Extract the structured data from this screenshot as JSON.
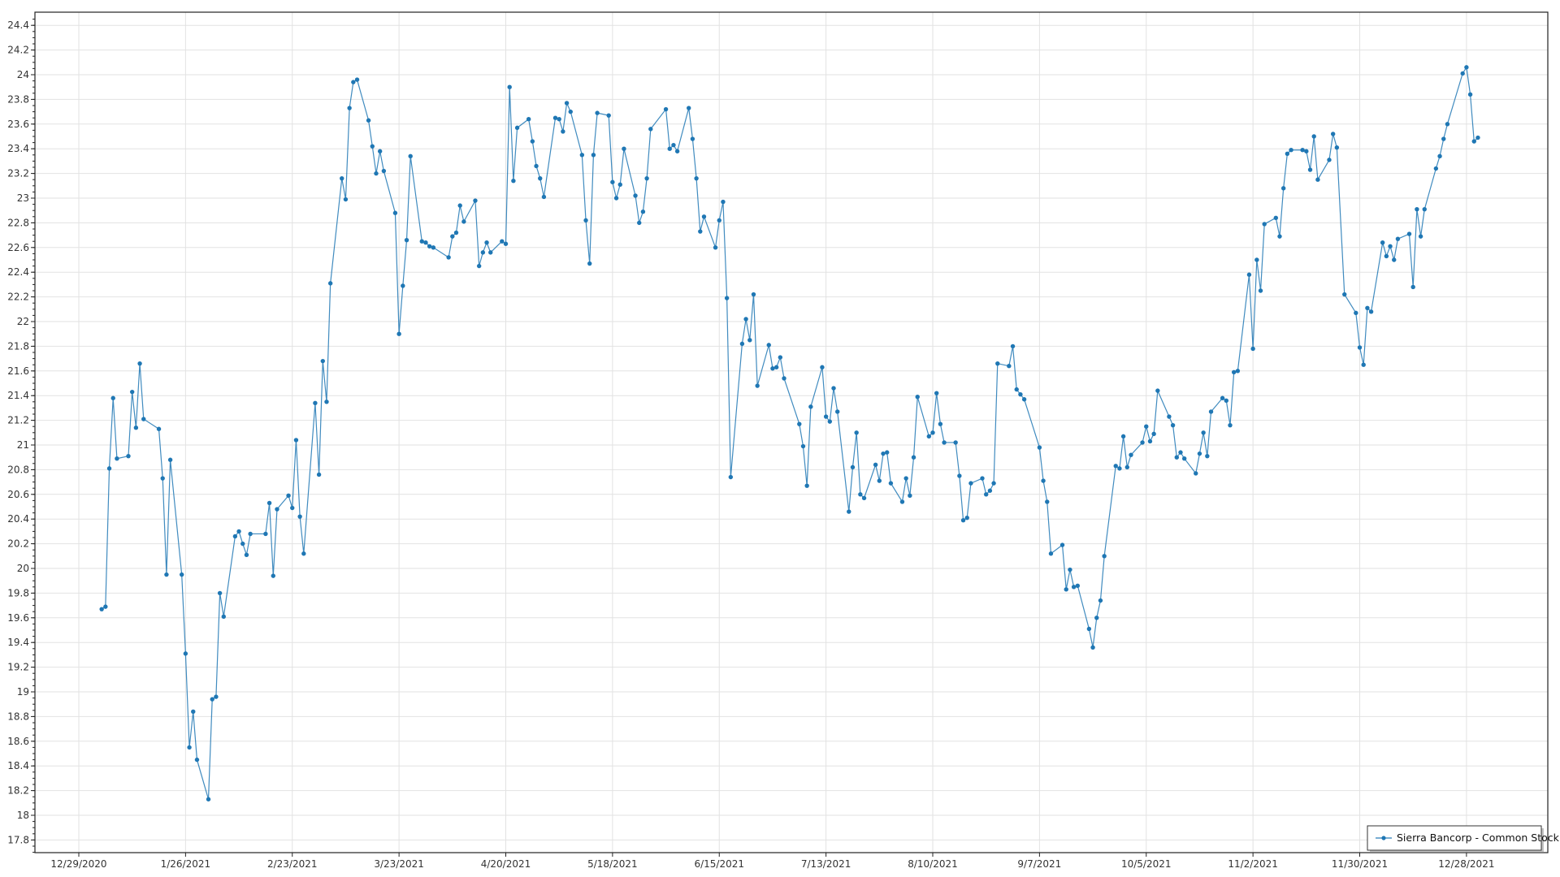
{
  "chart_data": {
    "type": "line",
    "title": "",
    "xlabel": "",
    "ylabel": "",
    "grid": true,
    "legend_position": "bottom-right",
    "ylim": [
      17.7,
      24.5
    ],
    "xlim": [
      "2020-12-17",
      "2022-01-18"
    ],
    "series_color": "#1f77b4",
    "x_tick_labels": [
      "12/29/2020",
      "1/26/2021",
      "2/23/2021",
      "3/23/2021",
      "4/20/2021",
      "5/18/2021",
      "6/15/2021",
      "7/13/2021",
      "8/10/2021",
      "9/7/2021",
      "10/5/2021",
      "11/2/2021",
      "11/30/2021",
      "12/28/2021"
    ],
    "y_tick_labels": [
      "17.8",
      "18",
      "18.2",
      "18.4",
      "18.6",
      "18.8",
      "19",
      "19.2",
      "19.4",
      "19.6",
      "19.8",
      "20",
      "20.2",
      "20.4",
      "20.6",
      "20.8",
      "21",
      "21.2",
      "21.4",
      "21.6",
      "21.8",
      "22",
      "22.2",
      "22.4",
      "22.6",
      "22.8",
      "23",
      "23.2",
      "23.4",
      "23.6",
      "23.8",
      "24",
      "24.2",
      "24.4"
    ],
    "series": [
      {
        "name": "Sierra Bancorp - Common Stock",
        "points": [
          [
            "2021-01-04",
            19.67
          ],
          [
            "2021-01-05",
            19.69
          ],
          [
            "2021-01-06",
            20.81
          ],
          [
            "2021-01-07",
            21.38
          ],
          [
            "2021-01-08",
            20.89
          ],
          [
            "2021-01-11",
            20.91
          ],
          [
            "2021-01-12",
            21.43
          ],
          [
            "2021-01-13",
            21.14
          ],
          [
            "2021-01-14",
            21.66
          ],
          [
            "2021-01-15",
            21.21
          ],
          [
            "2021-01-19",
            21.13
          ],
          [
            "2021-01-20",
            20.73
          ],
          [
            "2021-01-21",
            19.95
          ],
          [
            "2021-01-22",
            20.88
          ],
          [
            "2021-01-25",
            19.95
          ],
          [
            "2021-01-26",
            19.31
          ],
          [
            "2021-01-27",
            18.55
          ],
          [
            "2021-01-28",
            18.84
          ],
          [
            "2021-01-29",
            18.45
          ],
          [
            "2021-02-01",
            18.13
          ],
          [
            "2021-02-02",
            18.94
          ],
          [
            "2021-02-03",
            18.96
          ],
          [
            "2021-02-04",
            19.8
          ],
          [
            "2021-02-05",
            19.61
          ],
          [
            "2021-02-08",
            20.26
          ],
          [
            "2021-02-09",
            20.3
          ],
          [
            "2021-02-10",
            20.2
          ],
          [
            "2021-02-11",
            20.11
          ],
          [
            "2021-02-12",
            20.28
          ],
          [
            "2021-02-16",
            20.28
          ],
          [
            "2021-02-17",
            20.53
          ],
          [
            "2021-02-18",
            19.94
          ],
          [
            "2021-02-19",
            20.48
          ],
          [
            "2021-02-22",
            20.59
          ],
          [
            "2021-02-23",
            20.49
          ],
          [
            "2021-02-24",
            21.04
          ],
          [
            "2021-02-25",
            20.42
          ],
          [
            "2021-02-26",
            20.12
          ],
          [
            "2021-03-01",
            21.34
          ],
          [
            "2021-03-02",
            20.76
          ],
          [
            "2021-03-03",
            21.68
          ],
          [
            "2021-03-04",
            21.35
          ],
          [
            "2021-03-05",
            22.31
          ],
          [
            "2021-03-08",
            23.16
          ],
          [
            "2021-03-09",
            22.99
          ],
          [
            "2021-03-10",
            23.73
          ],
          [
            "2021-03-11",
            23.94
          ],
          [
            "2021-03-12",
            23.96
          ],
          [
            "2021-03-15",
            23.63
          ],
          [
            "2021-03-16",
            23.42
          ],
          [
            "2021-03-17",
            23.2
          ],
          [
            "2021-03-18",
            23.38
          ],
          [
            "2021-03-19",
            23.22
          ],
          [
            "2021-03-22",
            22.88
          ],
          [
            "2021-03-23",
            21.9
          ],
          [
            "2021-03-24",
            22.29
          ],
          [
            "2021-03-25",
            22.66
          ],
          [
            "2021-03-26",
            23.34
          ],
          [
            "2021-03-29",
            22.65
          ],
          [
            "2021-03-30",
            22.64
          ],
          [
            "2021-03-31",
            22.61
          ],
          [
            "2021-04-01",
            22.6
          ],
          [
            "2021-04-05",
            22.52
          ],
          [
            "2021-04-06",
            22.69
          ],
          [
            "2021-04-07",
            22.72
          ],
          [
            "2021-04-08",
            22.94
          ],
          [
            "2021-04-09",
            22.81
          ],
          [
            "2021-04-12",
            22.98
          ],
          [
            "2021-04-13",
            22.45
          ],
          [
            "2021-04-14",
            22.56
          ],
          [
            "2021-04-15",
            22.64
          ],
          [
            "2021-04-16",
            22.56
          ],
          [
            "2021-04-19",
            22.65
          ],
          [
            "2021-04-20",
            22.63
          ],
          [
            "2021-04-21",
            23.9
          ],
          [
            "2021-04-22",
            23.14
          ],
          [
            "2021-04-23",
            23.57
          ],
          [
            "2021-04-26",
            23.64
          ],
          [
            "2021-04-27",
            23.46
          ],
          [
            "2021-04-28",
            23.26
          ],
          [
            "2021-04-29",
            23.16
          ],
          [
            "2021-04-30",
            23.01
          ],
          [
            "2021-05-03",
            23.65
          ],
          [
            "2021-05-04",
            23.64
          ],
          [
            "2021-05-05",
            23.54
          ],
          [
            "2021-05-06",
            23.77
          ],
          [
            "2021-05-07",
            23.7
          ],
          [
            "2021-05-10",
            23.35
          ],
          [
            "2021-05-11",
            22.82
          ],
          [
            "2021-05-12",
            22.47
          ],
          [
            "2021-05-13",
            23.35
          ],
          [
            "2021-05-14",
            23.69
          ],
          [
            "2021-05-17",
            23.67
          ],
          [
            "2021-05-18",
            23.13
          ],
          [
            "2021-05-19",
            23.0
          ],
          [
            "2021-05-20",
            23.11
          ],
          [
            "2021-05-21",
            23.4
          ],
          [
            "2021-05-24",
            23.02
          ],
          [
            "2021-05-25",
            22.8
          ],
          [
            "2021-05-26",
            22.89
          ],
          [
            "2021-05-27",
            23.16
          ],
          [
            "2021-05-28",
            23.56
          ],
          [
            "2021-06-01",
            23.72
          ],
          [
            "2021-06-02",
            23.4
          ],
          [
            "2021-06-03",
            23.43
          ],
          [
            "2021-06-04",
            23.38
          ],
          [
            "2021-06-07",
            23.73
          ],
          [
            "2021-06-08",
            23.48
          ],
          [
            "2021-06-09",
            23.16
          ],
          [
            "2021-06-10",
            22.73
          ],
          [
            "2021-06-11",
            22.85
          ],
          [
            "2021-06-14",
            22.6
          ],
          [
            "2021-06-15",
            22.82
          ],
          [
            "2021-06-16",
            22.97
          ],
          [
            "2021-06-17",
            22.19
          ],
          [
            "2021-06-18",
            20.74
          ],
          [
            "2021-06-21",
            21.82
          ],
          [
            "2021-06-22",
            22.02
          ],
          [
            "2021-06-23",
            21.85
          ],
          [
            "2021-06-24",
            22.22
          ],
          [
            "2021-06-25",
            21.48
          ],
          [
            "2021-06-28",
            21.81
          ],
          [
            "2021-06-29",
            21.62
          ],
          [
            "2021-06-30",
            21.63
          ],
          [
            "2021-07-01",
            21.71
          ],
          [
            "2021-07-02",
            21.54
          ],
          [
            "2021-07-06",
            21.17
          ],
          [
            "2021-07-07",
            20.99
          ],
          [
            "2021-07-08",
            20.67
          ],
          [
            "2021-07-09",
            21.31
          ],
          [
            "2021-07-12",
            21.63
          ],
          [
            "2021-07-13",
            21.23
          ],
          [
            "2021-07-14",
            21.19
          ],
          [
            "2021-07-15",
            21.46
          ],
          [
            "2021-07-16",
            21.27
          ],
          [
            "2021-07-19",
            20.46
          ],
          [
            "2021-07-20",
            20.82
          ],
          [
            "2021-07-21",
            21.1
          ],
          [
            "2021-07-22",
            20.6
          ],
          [
            "2021-07-23",
            20.57
          ],
          [
            "2021-07-26",
            20.84
          ],
          [
            "2021-07-27",
            20.71
          ],
          [
            "2021-07-28",
            20.93
          ],
          [
            "2021-07-29",
            20.94
          ],
          [
            "2021-07-30",
            20.69
          ],
          [
            "2021-08-02",
            20.54
          ],
          [
            "2021-08-03",
            20.73
          ],
          [
            "2021-08-04",
            20.59
          ],
          [
            "2021-08-05",
            20.9
          ],
          [
            "2021-08-06",
            21.39
          ],
          [
            "2021-08-09",
            21.07
          ],
          [
            "2021-08-10",
            21.1
          ],
          [
            "2021-08-11",
            21.42
          ],
          [
            "2021-08-12",
            21.17
          ],
          [
            "2021-08-13",
            21.02
          ],
          [
            "2021-08-16",
            21.02
          ],
          [
            "2021-08-17",
            20.75
          ],
          [
            "2021-08-18",
            20.39
          ],
          [
            "2021-08-19",
            20.41
          ],
          [
            "2021-08-20",
            20.69
          ],
          [
            "2021-08-23",
            20.73
          ],
          [
            "2021-08-24",
            20.6
          ],
          [
            "2021-08-25",
            20.63
          ],
          [
            "2021-08-26",
            20.69
          ],
          [
            "2021-08-27",
            21.66
          ],
          [
            "2021-08-30",
            21.64
          ],
          [
            "2021-08-31",
            21.8
          ],
          [
            "2021-09-01",
            21.45
          ],
          [
            "2021-09-02",
            21.41
          ],
          [
            "2021-09-03",
            21.37
          ],
          [
            "2021-09-07",
            20.98
          ],
          [
            "2021-09-08",
            20.71
          ],
          [
            "2021-09-09",
            20.54
          ],
          [
            "2021-09-10",
            20.12
          ],
          [
            "2021-09-13",
            20.19
          ],
          [
            "2021-09-14",
            19.83
          ],
          [
            "2021-09-15",
            19.99
          ],
          [
            "2021-09-16",
            19.85
          ],
          [
            "2021-09-17",
            19.86
          ],
          [
            "2021-09-20",
            19.51
          ],
          [
            "2021-09-21",
            19.36
          ],
          [
            "2021-09-22",
            19.6
          ],
          [
            "2021-09-23",
            19.74
          ],
          [
            "2021-09-24",
            20.1
          ],
          [
            "2021-09-27",
            20.83
          ],
          [
            "2021-09-28",
            20.81
          ],
          [
            "2021-09-29",
            21.07
          ],
          [
            "2021-09-30",
            20.82
          ],
          [
            "2021-10-01",
            20.92
          ],
          [
            "2021-10-04",
            21.02
          ],
          [
            "2021-10-05",
            21.15
          ],
          [
            "2021-10-06",
            21.03
          ],
          [
            "2021-10-07",
            21.09
          ],
          [
            "2021-10-08",
            21.44
          ],
          [
            "2021-10-11",
            21.23
          ],
          [
            "2021-10-12",
            21.16
          ],
          [
            "2021-10-13",
            20.9
          ],
          [
            "2021-10-14",
            20.94
          ],
          [
            "2021-10-15",
            20.89
          ],
          [
            "2021-10-18",
            20.77
          ],
          [
            "2021-10-19",
            20.93
          ],
          [
            "2021-10-20",
            21.1
          ],
          [
            "2021-10-21",
            20.91
          ],
          [
            "2021-10-22",
            21.27
          ],
          [
            "2021-10-25",
            21.38
          ],
          [
            "2021-10-26",
            21.36
          ],
          [
            "2021-10-27",
            21.16
          ],
          [
            "2021-10-28",
            21.59
          ],
          [
            "2021-10-29",
            21.6
          ],
          [
            "2021-11-01",
            22.38
          ],
          [
            "2021-11-02",
            21.78
          ],
          [
            "2021-11-03",
            22.5
          ],
          [
            "2021-11-04",
            22.25
          ],
          [
            "2021-11-05",
            22.79
          ],
          [
            "2021-11-08",
            22.84
          ],
          [
            "2021-11-09",
            22.69
          ],
          [
            "2021-11-10",
            23.08
          ],
          [
            "2021-11-11",
            23.36
          ],
          [
            "2021-11-12",
            23.39
          ],
          [
            "2021-11-15",
            23.39
          ],
          [
            "2021-11-16",
            23.38
          ],
          [
            "2021-11-17",
            23.23
          ],
          [
            "2021-11-18",
            23.5
          ],
          [
            "2021-11-19",
            23.15
          ],
          [
            "2021-11-22",
            23.31
          ],
          [
            "2021-11-23",
            23.52
          ],
          [
            "2021-11-24",
            23.41
          ],
          [
            "2021-11-26",
            22.22
          ],
          [
            "2021-11-29",
            22.07
          ],
          [
            "2021-11-30",
            21.79
          ],
          [
            "2021-12-01",
            21.65
          ],
          [
            "2021-12-02",
            22.11
          ],
          [
            "2021-12-03",
            22.08
          ],
          [
            "2021-12-06",
            22.64
          ],
          [
            "2021-12-07",
            22.53
          ],
          [
            "2021-12-08",
            22.61
          ],
          [
            "2021-12-09",
            22.5
          ],
          [
            "2021-12-10",
            22.67
          ],
          [
            "2021-12-13",
            22.71
          ],
          [
            "2021-12-14",
            22.28
          ],
          [
            "2021-12-15",
            22.91
          ],
          [
            "2021-12-16",
            22.69
          ],
          [
            "2021-12-17",
            22.91
          ],
          [
            "2021-12-20",
            23.24
          ],
          [
            "2021-12-21",
            23.34
          ],
          [
            "2021-12-22",
            23.48
          ],
          [
            "2021-12-23",
            23.6
          ],
          [
            "2021-12-27",
            24.01
          ],
          [
            "2021-12-28",
            24.06
          ],
          [
            "2021-12-29",
            23.84
          ],
          [
            "2021-12-30",
            23.46
          ],
          [
            "2021-12-31",
            23.49
          ]
        ]
      }
    ]
  }
}
